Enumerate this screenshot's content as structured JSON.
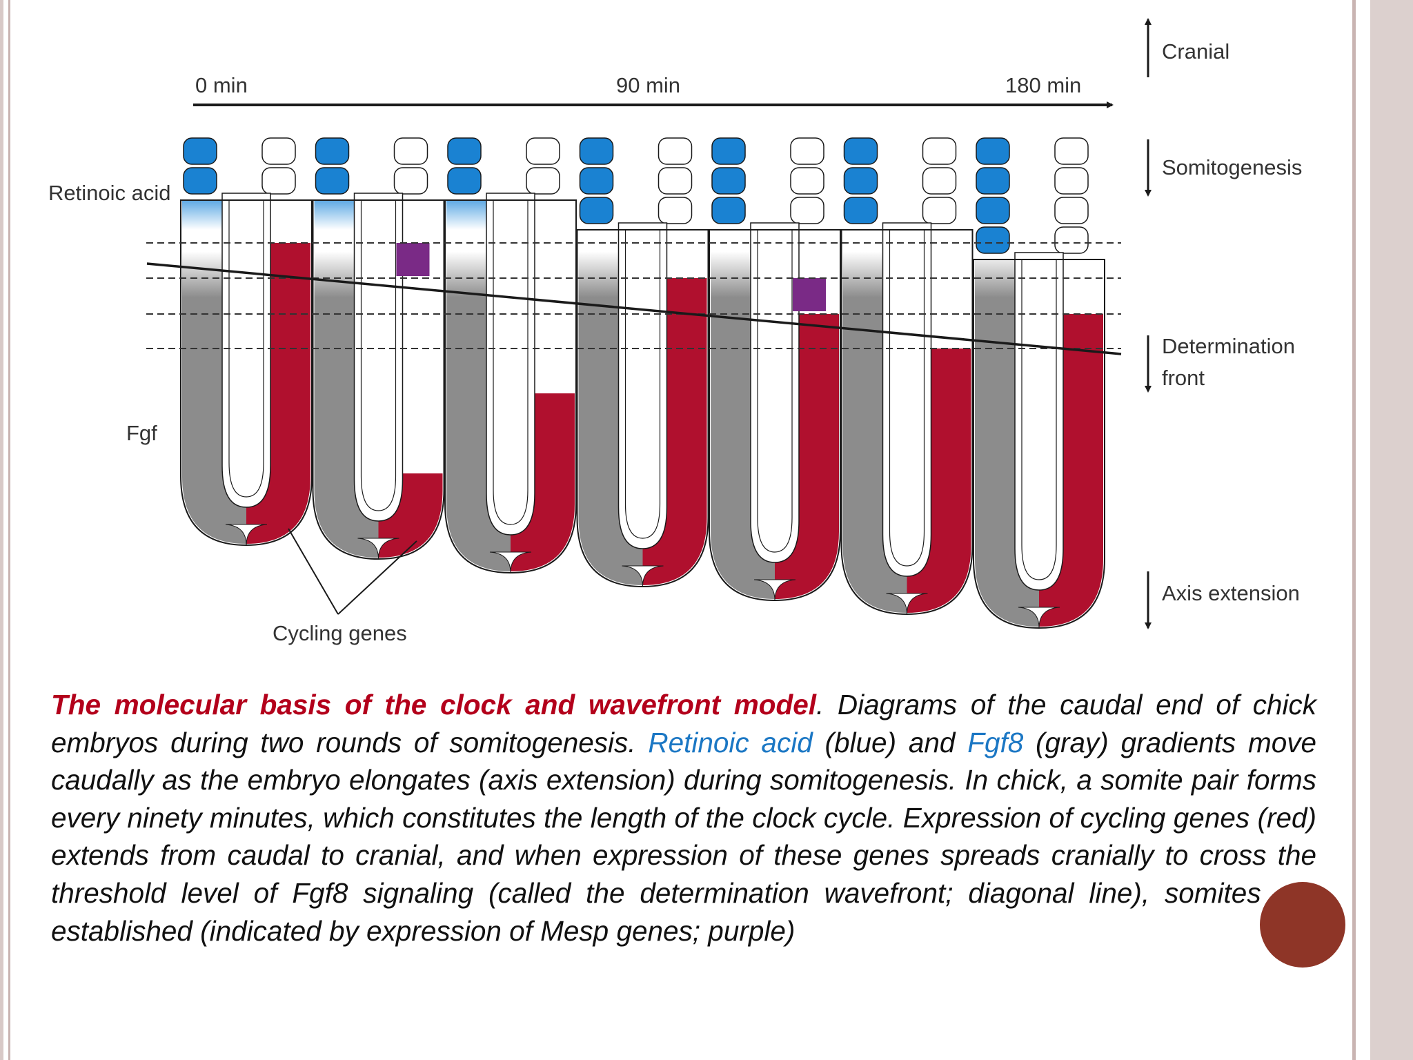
{
  "figure": {
    "timeline": [
      "0 min",
      "90 min",
      "180 min"
    ],
    "left_labels": {
      "retinoic_acid": "Retinoic acid",
      "fgf": "Fgf",
      "cycling_genes": "Cycling genes"
    },
    "right_labels": {
      "cranial": "Cranial",
      "somitogenesis": "Somitogenesis",
      "determination_line1": "Determination",
      "determination_line2": "front",
      "axis_extension": "Axis extension"
    },
    "stages": [
      {
        "somites": 2,
        "red_top_level": 0,
        "mesp": false,
        "mesp_level": null
      },
      {
        "somites": 2,
        "red_top_level": 5,
        "mesp": true,
        "mesp_level": 0
      },
      {
        "somites": 2,
        "red_top_level": 4,
        "mesp": false,
        "mesp_level": null
      },
      {
        "somites": 3,
        "red_top_level": 1,
        "mesp": false,
        "mesp_level": null
      },
      {
        "somites": 3,
        "red_top_level": 6,
        "mesp": true,
        "mesp_level": 1
      },
      {
        "somites": 3,
        "red_top_level": 3,
        "mesp": false,
        "mesp_level": null
      },
      {
        "somites": 4,
        "red_top_level": 2,
        "mesp": false,
        "mesp_level": null
      }
    ],
    "colors": {
      "retinoic_acid": "#1a82d2",
      "fgf": "#8c8c8c",
      "cycling_genes": "#b0102e",
      "mesp": "#7a2a86",
      "line": "#1a1a1a",
      "edge_bar": "#c9b4b2"
    }
  },
  "caption": {
    "title": "The molecular basis of the clock and wavefront model",
    "part1": ". Diagrams of the caudal end of chick embryos during two rounds of somitogenesis. ",
    "retinoic_acid": "Retinoic acid",
    "part2": " (blue) and ",
    "fgf8": "Fgf8",
    "part3": " (gray) gradients move caudally as the embryo elongates (axis extension) during somitogenesis. In chick, a somite pair forms every ninety minutes, which constitutes the length of the clock cycle. Expression of cycling genes (red) extends from caudal to cranial, and when expression of these genes spreads cranially to cross the threshold level of Fgf8 signaling (called the determination wavefront; diagonal line), somites are established (indicated by expression of Mesp genes; purple)"
  }
}
